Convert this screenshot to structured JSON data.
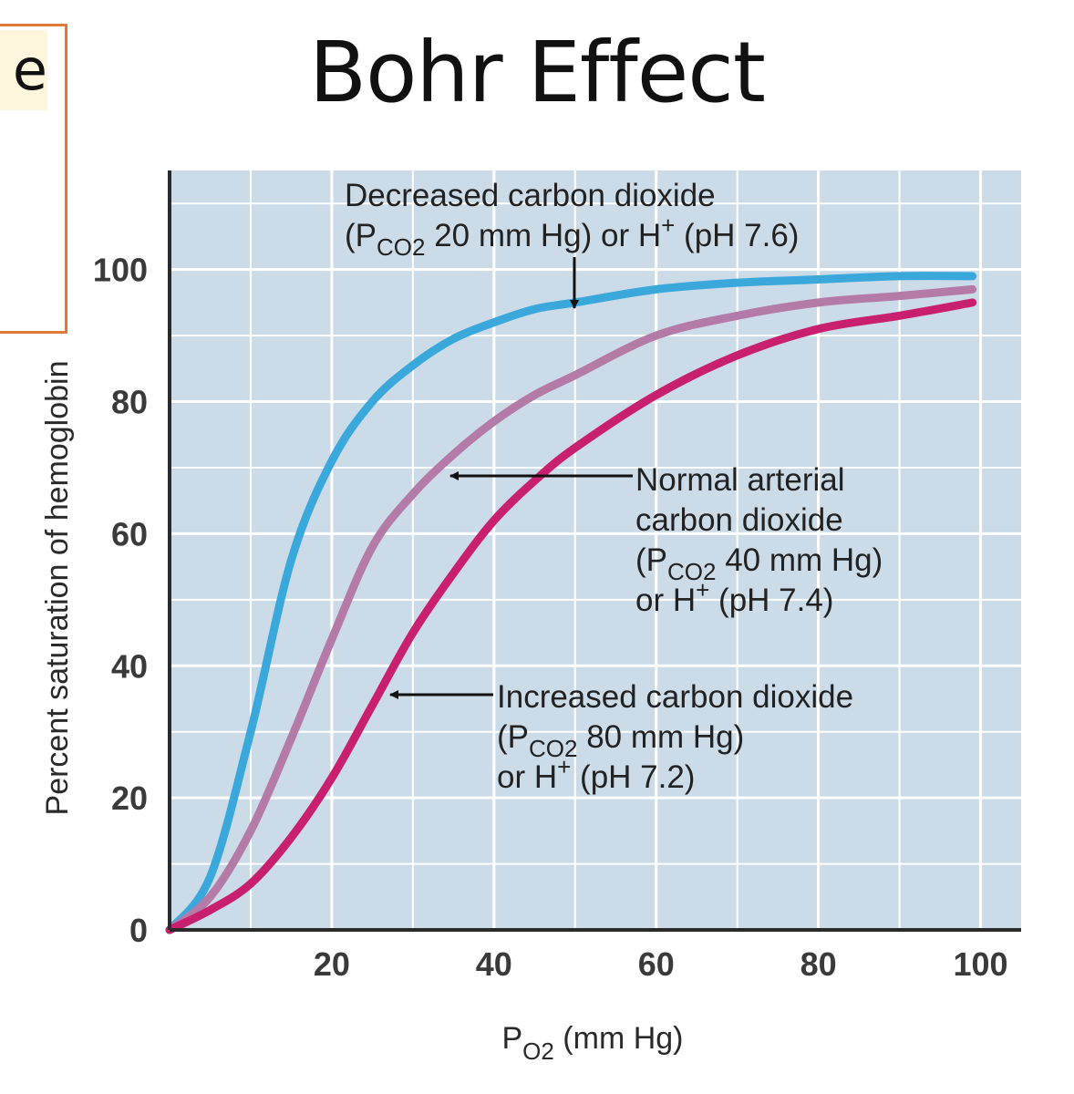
{
  "slide": {
    "title": "Bohr Effect",
    "side_box_text": "e"
  },
  "colors": {
    "plot_background": "#cbdbe7",
    "grid": "#ffffff",
    "decreased_co2": "#3ba8dc",
    "normal_co2": "#b47aa8",
    "increased_co2": "#c81f6e"
  },
  "chart_data": {
    "type": "line",
    "title": "",
    "xlabel": {
      "main": "P",
      "sub": "O2",
      "rest": " (mm Hg)"
    },
    "ylabel": "Percent saturation of hemoglobin",
    "xlim": [
      0,
      105
    ],
    "ylim": [
      0,
      115
    ],
    "xticks": [
      20,
      40,
      60,
      80,
      100
    ],
    "yticks": [
      0,
      20,
      40,
      60,
      80,
      100
    ],
    "grid": true,
    "series": [
      {
        "key": "decreased",
        "x": [
          0,
          5,
          10,
          15,
          20,
          25,
          30,
          35,
          40,
          45,
          50,
          60,
          70,
          80,
          90,
          99
        ],
        "y": [
          0,
          8,
          30,
          56,
          71,
          80,
          85.5,
          89.5,
          92,
          94,
          95,
          97,
          98,
          98.5,
          99,
          99
        ]
      },
      {
        "key": "normal",
        "x": [
          0,
          5,
          10,
          15,
          20,
          25,
          30,
          35,
          40,
          45,
          50,
          60,
          70,
          80,
          90,
          99
        ],
        "y": [
          0,
          5,
          15,
          29,
          44,
          58,
          66,
          72,
          77,
          81,
          84,
          90,
          93,
          95,
          96,
          97
        ]
      },
      {
        "key": "increased",
        "x": [
          0,
          5,
          10,
          15,
          20,
          25,
          30,
          35,
          40,
          45,
          50,
          60,
          70,
          80,
          90,
          99
        ],
        "y": [
          0,
          3,
          7,
          14,
          23,
          34,
          45,
          54,
          62,
          68,
          73,
          81,
          87,
          91,
          93,
          95
        ]
      }
    ],
    "annotations": [
      {
        "key": "decreased",
        "lines": [
          [
            {
              "t": "Decreased carbon dioxide"
            }
          ],
          [
            {
              "t": "(P"
            },
            {
              "t": "CO2",
              "sub": true
            },
            {
              "t": " 20 mm Hg) or H"
            },
            {
              "t": "+",
              "sup": true
            },
            {
              "t": " (pH 7.6)"
            }
          ]
        ]
      },
      {
        "key": "normal",
        "lines": [
          [
            {
              "t": "Normal arterial"
            }
          ],
          [
            {
              "t": "carbon dioxide"
            }
          ],
          [
            {
              "t": "(P"
            },
            {
              "t": "CO2",
              "sub": true
            },
            {
              "t": " 40 mm Hg)"
            }
          ],
          [
            {
              "t": "or H"
            },
            {
              "t": "+",
              "sup": true
            },
            {
              "t": " (pH 7.4)"
            }
          ]
        ]
      },
      {
        "key": "increased",
        "lines": [
          [
            {
              "t": "Increased carbon dioxide"
            }
          ],
          [
            {
              "t": "(P"
            },
            {
              "t": "CO2",
              "sub": true
            },
            {
              "t": " 80 mm Hg)"
            }
          ],
          [
            {
              "t": "or H"
            },
            {
              "t": "+",
              "sup": true
            },
            {
              "t": " (pH 7.2)"
            }
          ]
        ]
      }
    ]
  }
}
